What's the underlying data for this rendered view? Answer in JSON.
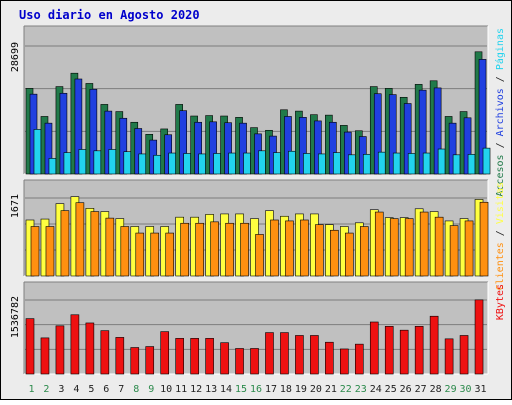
{
  "colors": {
    "background": "#ececec",
    "plot_bg": "#c0c0c0",
    "title": "#0000cc",
    "gridline": "#7d7d7d",
    "accesos": "#217a4a",
    "archivos": "#2040e0",
    "paginas": "#22d3ee",
    "visitas": "#ffff40",
    "clientes": "#ff9010",
    "kbytes": "#ee1111",
    "weekday_label": "#222222",
    "weekend_label": "#2c8a4c"
  },
  "chart_data": {
    "type": "bar",
    "title": "Uso diario en Agosto 2020",
    "categories": [
      "1",
      "2",
      "3",
      "4",
      "5",
      "6",
      "7",
      "8",
      "9",
      "10",
      "11",
      "12",
      "13",
      "14",
      "15",
      "16",
      "17",
      "18",
      "19",
      "20",
      "21",
      "22",
      "23",
      "24",
      "25",
      "26",
      "27",
      "28",
      "29",
      "30",
      "31"
    ],
    "weekend_days": [
      "1",
      "2",
      "8",
      "9",
      "15",
      "16",
      "22",
      "23",
      "29",
      "30"
    ],
    "panels": [
      {
        "id": "top",
        "ymax_label": "28699",
        "ymax": 28699,
        "right_labels": [
          {
            "text": "Accesos",
            "color": "#217a4a"
          },
          {
            "text": " / ",
            "color": "#222222"
          },
          {
            "text": "Archivos",
            "color": "#2040e0"
          },
          {
            "text": " / ",
            "color": "#222222"
          },
          {
            "text": "Páginas",
            "color": "#22d3ee"
          }
        ],
        "series": [
          {
            "name": "Accesos",
            "color": "#217a4a",
            "values": [
              19200,
              12900,
              19600,
              22600,
              20300,
              15600,
              14000,
              11600,
              8900,
              10100,
              15600,
              13000,
              13100,
              13000,
              12700,
              10400,
              9800,
              14400,
              14100,
              13300,
              13200,
              10900,
              9700,
              19600,
              19200,
              17200,
              20100,
              20900,
              12900,
              14000,
              27400
            ]
          },
          {
            "name": "Archivos",
            "color": "#2040e0",
            "values": [
              17900,
              11400,
              18100,
              21300,
              19000,
              14100,
              12500,
              10200,
              7600,
              8800,
              14200,
              11600,
              11700,
              11500,
              11400,
              9000,
              8500,
              12900,
              12700,
              11900,
              11600,
              9400,
              8400,
              18000,
              17800,
              15800,
              18800,
              19300,
              11400,
              12600,
              25700
            ]
          },
          {
            "name": "Páginas",
            "color": "#22d3ee",
            "values": [
              10000,
              3500,
              4800,
              5500,
              5200,
              5500,
              5000,
              4500,
              4200,
              4700,
              4600,
              4500,
              4600,
              4700,
              4700,
              5200,
              4800,
              5100,
              4600,
              4500,
              4800,
              4300,
              4400,
              4900,
              4700,
              4600,
              4700,
              5600,
              4300,
              4400,
              5800
            ]
          }
        ]
      },
      {
        "id": "middle",
        "ymax_label": "1671",
        "ymax": 1671,
        "right_labels": [
          {
            "text": "Clientes",
            "color": "#ff9010"
          },
          {
            "text": " / ",
            "color": "#222222"
          },
          {
            "text": "Visitas",
            "color": "#ffff40"
          }
        ],
        "series": [
          {
            "name": "Visitas",
            "color": "#ffff40",
            "values": [
              1200,
              1220,
              1550,
              1700,
              1450,
              1380,
              1230,
              1060,
              1060,
              1060,
              1260,
              1260,
              1320,
              1330,
              1330,
              1230,
              1400,
              1280,
              1330,
              1330,
              1100,
              1060,
              1140,
              1420,
              1250,
              1250,
              1440,
              1380,
              1180,
              1230,
              1640
            ]
          },
          {
            "name": "Clientes",
            "color": "#ff9010",
            "values": [
              1060,
              1060,
              1400,
              1570,
              1380,
              1240,
              1060,
              920,
              920,
              920,
              1130,
              1130,
              1160,
              1130,
              1130,
              890,
              1200,
              1180,
              1200,
              1100,
              980,
              920,
              1060,
              1370,
              1230,
              1230,
              1370,
              1260,
              1080,
              1180,
              1580
            ]
          }
        ]
      },
      {
        "id": "bottom",
        "ymax_label": "1536782",
        "ymax": 1536782,
        "right_labels": [
          {
            "text": "KBytes",
            "color": "#ee1111"
          }
        ],
        "series": [
          {
            "name": "KBytes",
            "color": "#ee1111",
            "values": [
              1150000,
              750000,
              1000000,
              1230000,
              1060000,
              900000,
              760000,
              550000,
              570000,
              880000,
              740000,
              740000,
              740000,
              650000,
              530000,
              530000,
              860000,
              860000,
              800000,
              800000,
              660000,
              520000,
              620000,
              1080000,
              990000,
              910000,
              990000,
              1200000,
              730000,
              800000,
              1540000
            ]
          }
        ]
      }
    ]
  }
}
